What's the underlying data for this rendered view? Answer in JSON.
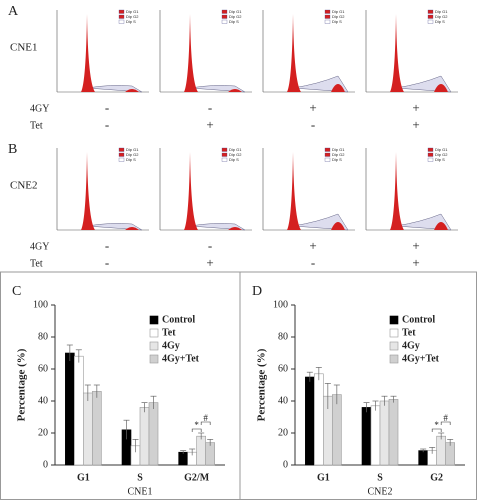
{
  "panels": [
    {
      "label": "A",
      "cell_line": "CNE1",
      "legend": [
        "Dip G1",
        "Dip G2",
        "Dip S"
      ],
      "rows": [
        {
          "name": "4GY",
          "values": [
            "-",
            "-",
            "+",
            "+"
          ]
        },
        {
          "name": "Tet",
          "values": [
            "-",
            "+",
            "-",
            "+"
          ]
        }
      ]
    },
    {
      "label": "B",
      "cell_line": "CNE2",
      "legend": [
        "Dip G1",
        "Dip G2",
        "Dip S"
      ],
      "rows": [
        {
          "name": "4GY",
          "values": [
            "-",
            "-",
            "+",
            "+"
          ]
        },
        {
          "name": "Tet",
          "values": [
            "-",
            "+",
            "-",
            "+"
          ]
        }
      ]
    }
  ],
  "chart_data": [
    {
      "type": "bar",
      "label": "C",
      "ylabel": "Percentage (%)",
      "xlabel": "CNE1",
      "categories": [
        "G1",
        "S",
        "G2/M"
      ],
      "series": [
        {
          "name": "Control",
          "color": "#000000",
          "values": [
            70,
            22,
            8
          ],
          "errors": [
            5,
            6,
            1
          ]
        },
        {
          "name": "Tet",
          "color": "#ffffff",
          "values": [
            68,
            12,
            8
          ],
          "errors": [
            4,
            4,
            2
          ]
        },
        {
          "name": "4Gy",
          "color": "#e6e6e6",
          "values": [
            45,
            36,
            18
          ],
          "errors": [
            5,
            3,
            2
          ]
        },
        {
          "name": "4Gy+Tet",
          "color": "#d0d0d0",
          "values": [
            46,
            39,
            14
          ],
          "errors": [
            4,
            4,
            2
          ]
        }
      ],
      "ylim": [
        0,
        100
      ],
      "yticks": [
        0,
        20,
        40,
        60,
        80,
        100
      ],
      "annotations": [
        "*",
        "#"
      ]
    },
    {
      "type": "bar",
      "label": "D",
      "ylabel": "Percentage (%)",
      "xlabel": "CNE2",
      "categories": [
        "G1",
        "S",
        "G2"
      ],
      "series": [
        {
          "name": "Control",
          "color": "#000000",
          "values": [
            55,
            36,
            9
          ],
          "errors": [
            3,
            3,
            1
          ]
        },
        {
          "name": "Tet",
          "color": "#ffffff",
          "values": [
            57,
            37,
            9
          ],
          "errors": [
            4,
            3,
            2
          ]
        },
        {
          "name": "4Gy",
          "color": "#e6e6e6",
          "values": [
            43,
            40,
            18
          ],
          "errors": [
            8,
            3,
            2
          ]
        },
        {
          "name": "4Gy+Tet",
          "color": "#d0d0d0",
          "values": [
            44,
            41,
            14
          ],
          "errors": [
            6,
            2,
            2
          ]
        }
      ],
      "ylim": [
        0,
        100
      ],
      "yticks": [
        0,
        20,
        40,
        60,
        80,
        100
      ],
      "annotations": [
        "*",
        "#"
      ]
    }
  ]
}
